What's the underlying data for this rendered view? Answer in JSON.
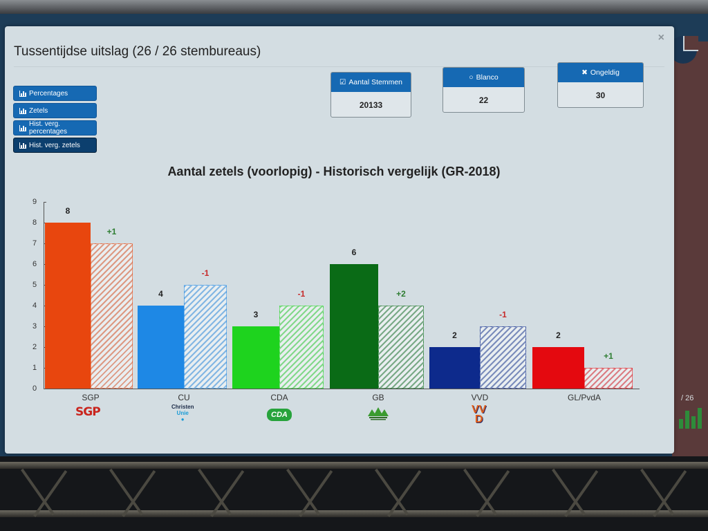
{
  "modal": {
    "title": "Tussentijdse uitslag (26 / 26 stembureaus)",
    "close_icon": "×"
  },
  "nav_buttons": [
    {
      "label": "Percentages",
      "icon": "bar-chart-icon",
      "active": false
    },
    {
      "label": "Zetels",
      "icon": "bar-chart-icon",
      "active": false
    },
    {
      "label": "Hist. verg. percentages",
      "icon": "bar-chart-icon",
      "active": false
    },
    {
      "label": "Hist. verg. zetels",
      "icon": "bar-chart-icon",
      "active": true
    }
  ],
  "stats": [
    {
      "label": "Aantal Stemmen",
      "icon": "☑",
      "value": "20133"
    },
    {
      "label": "Blanco",
      "icon": "○",
      "value": "22"
    },
    {
      "label": "Ongeldig",
      "icon": "✖",
      "value": "30"
    }
  ],
  "background": {
    "count_text": "/ 26"
  },
  "colors": {
    "button_blue": "#1669b3",
    "button_active": "#0c3f6e",
    "positive_delta": "#2e7d32",
    "negative_delta": "#c62828"
  },
  "chart_data": {
    "type": "bar",
    "title": "Aantal zetels (voorlopig) - Historisch vergelijk (GR-2018)",
    "xlabel": "",
    "ylabel": "",
    "ylim": [
      0,
      9
    ],
    "yticks": [
      "0",
      "1",
      "2",
      "3",
      "4",
      "5",
      "6",
      "7",
      "8",
      "9"
    ],
    "grid": false,
    "legend": "none",
    "categories": [
      "SGP",
      "CU",
      "CDA",
      "GB",
      "VVD",
      "GL/PvdA"
    ],
    "series": [
      {
        "name": "Voorlopig",
        "values": [
          8,
          4,
          3,
          6,
          2,
          2
        ],
        "colors": [
          "#e8460e",
          "#1e88e5",
          "#1ed31e",
          "#0a6b16",
          "#0d2a8c",
          "#e4090f"
        ]
      },
      {
        "name": "GR-2018",
        "values": [
          7,
          5,
          4,
          4,
          3,
          1
        ],
        "pattern": "hatched"
      }
    ],
    "value_labels": [
      "8",
      "4",
      "3",
      "6",
      "2",
      "2"
    ],
    "delta_labels": [
      "+1",
      "-1",
      "-1",
      "+2",
      "-1",
      "+1"
    ],
    "logos": [
      "SGP",
      "ChristenUnie",
      "CDA",
      "GB",
      "VVD",
      ""
    ]
  }
}
